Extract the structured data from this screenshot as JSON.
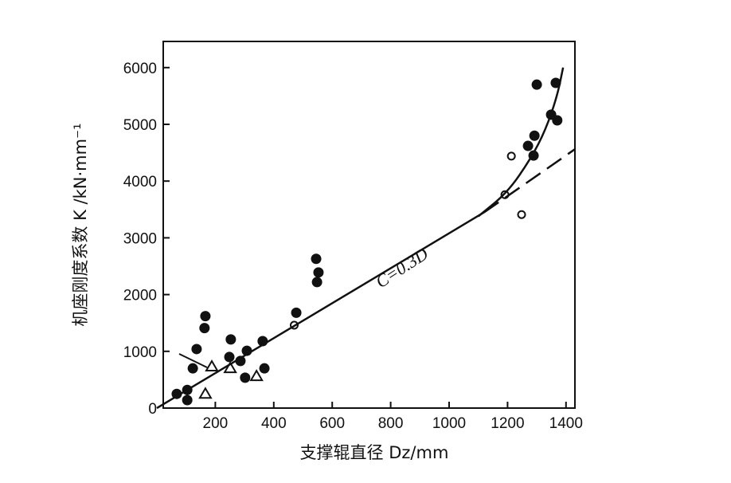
{
  "chart_data": {
    "type": "scatter",
    "xlabel": "支撑辊直径 Dz/mm",
    "ylabel": "机座刚度系数 K /kN·mm⁻¹",
    "xlim": [
      0,
      1430
    ],
    "ylim": [
      0,
      6500
    ],
    "xticks": [
      200,
      400,
      600,
      800,
      1000,
      1200,
      1400
    ],
    "yticks": [
      0,
      1000,
      2000,
      3000,
      4000,
      5000,
      6000
    ],
    "grid": false,
    "annotation": "C=0.3D",
    "series": [
      {
        "name": "filled circles",
        "marker": "filled-circle",
        "points": [
          [
            68,
            250
          ],
          [
            104,
            320
          ],
          [
            104,
            140
          ],
          [
            123,
            700
          ],
          [
            136,
            1040
          ],
          [
            166,
            1620
          ],
          [
            163,
            1410
          ],
          [
            253,
            1210
          ],
          [
            248,
            900
          ],
          [
            286,
            830
          ],
          [
            308,
            1010
          ],
          [
            302,
            535
          ],
          [
            362,
            1180
          ],
          [
            368,
            700
          ],
          [
            477,
            1680
          ],
          [
            545,
            2630
          ],
          [
            553,
            2390
          ],
          [
            548,
            2220
          ],
          [
            1270,
            4620
          ],
          [
            1289,
            4450
          ],
          [
            1292,
            4800
          ],
          [
            1300,
            5700
          ],
          [
            1349,
            5170
          ],
          [
            1365,
            5730
          ],
          [
            1370,
            5070
          ]
        ]
      },
      {
        "name": "open circles",
        "marker": "open-circle",
        "points": [
          [
            470,
            1460
          ],
          [
            1213,
            4440
          ],
          [
            1191,
            3760
          ],
          [
            1248,
            3410
          ]
        ]
      },
      {
        "name": "triangles",
        "marker": "open-triangle",
        "points": [
          [
            166,
            250
          ],
          [
            188,
            730
          ],
          [
            251,
            700
          ],
          [
            341,
            560
          ]
        ]
      },
      {
        "name": "fit line",
        "style": "solid",
        "points": [
          [
            0,
            0
          ],
          [
            1120,
            3450
          ]
        ]
      },
      {
        "name": "extrapolation",
        "style": "dashed",
        "points": [
          [
            1120,
            3450
          ],
          [
            1430,
            4560
          ]
        ]
      },
      {
        "name": "curve",
        "style": "solid",
        "points": [
          [
            1100,
            3380
          ],
          [
            1200,
            3800
          ],
          [
            1280,
            4400
          ],
          [
            1330,
            4900
          ],
          [
            1370,
            5500
          ],
          [
            1390,
            6000
          ]
        ]
      }
    ]
  }
}
